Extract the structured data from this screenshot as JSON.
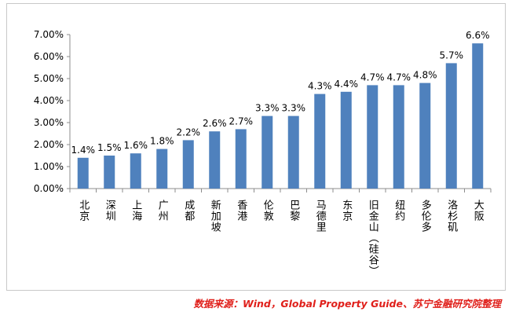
{
  "chart_data": {
    "type": "bar",
    "categories": [
      "北京",
      "深圳",
      "上海",
      "广州",
      "成都",
      "新加坡",
      "香港",
      "伦敦",
      "巴黎",
      "马德里",
      "东京",
      "旧金山（硅谷）",
      "纽约",
      "多伦多",
      "洛杉矶",
      "大阪"
    ],
    "values": [
      1.4,
      1.5,
      1.6,
      1.8,
      2.2,
      2.6,
      2.7,
      3.3,
      3.3,
      4.3,
      4.4,
      4.7,
      4.7,
      4.8,
      5.7,
      6.6
    ],
    "data_labels": [
      "1.4%",
      "1.5%",
      "1.6%",
      "1.8%",
      "2.2%",
      "2.6%",
      "2.7%",
      "3.3%",
      "3.3%",
      "4.3%",
      "4.4%",
      "4.7%",
      "4.7%",
      "4.8%",
      "5.7%",
      "6.6%"
    ],
    "y_ticks": [
      "0.00%",
      "1.00%",
      "2.00%",
      "3.00%",
      "4.00%",
      "5.00%",
      "6.00%",
      "7.00%"
    ],
    "ylim": [
      0,
      7
    ],
    "bar_color": "#4f81bd",
    "grid": false,
    "legend": "none",
    "title": "",
    "xlabel": "",
    "ylabel": ""
  },
  "source_note": "数据来源：Wind，Global Property Guide、苏宁金融研究院整理"
}
